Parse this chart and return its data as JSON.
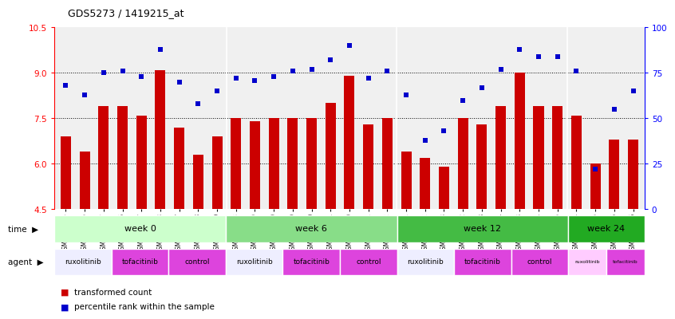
{
  "title": "GDS5273 / 1419215_at",
  "samples": [
    "GSM1105885",
    "GSM1105886",
    "GSM1105887",
    "GSM1105896",
    "GSM1105897",
    "GSM1105898",
    "GSM1105907",
    "GSM1105908",
    "GSM1105909",
    "GSM1105888",
    "GSM1105889",
    "GSM1105890",
    "GSM1105899",
    "GSM1105900",
    "GSM1105901",
    "GSM1105910",
    "GSM1105911",
    "GSM1105912",
    "GSM1105891",
    "GSM1105892",
    "GSM1105893",
    "GSM1105902",
    "GSM1105903",
    "GSM1105904",
    "GSM1105913",
    "GSM1105914",
    "GSM1105915",
    "GSM1105894",
    "GSM1105895",
    "GSM1105905",
    "GSM1105906"
  ],
  "bar_values": [
    6.9,
    6.4,
    7.9,
    7.9,
    7.6,
    9.1,
    7.2,
    6.3,
    6.9,
    7.5,
    7.4,
    7.5,
    7.5,
    7.5,
    8.0,
    8.9,
    7.3,
    7.5,
    6.4,
    6.2,
    5.9,
    7.5,
    7.3,
    7.9,
    9.0,
    7.9,
    7.9,
    7.6,
    6.0,
    6.8,
    6.8
  ],
  "percentile_values": [
    68,
    63,
    75,
    76,
    73,
    88,
    70,
    58,
    65,
    72,
    71,
    73,
    76,
    77,
    82,
    90,
    72,
    76,
    63,
    38,
    43,
    60,
    67,
    77,
    88,
    84,
    84,
    76,
    22,
    55,
    65
  ],
  "ylim_left": [
    4.5,
    10.5
  ],
  "ylim_right": [
    0,
    100
  ],
  "yticks_left": [
    4.5,
    6.0,
    7.5,
    9.0,
    10.5
  ],
  "yticks_right": [
    0,
    25,
    50,
    75,
    100
  ],
  "bar_color": "#cc0000",
  "dot_color": "#0000cc",
  "bar_bottom": 4.5,
  "dotted_yticks": [
    6.0,
    7.5,
    9.0
  ],
  "time_groups": [
    {
      "label": "week 0",
      "start": 0,
      "end": 9,
      "color": "#ccffcc"
    },
    {
      "label": "week 6",
      "start": 9,
      "end": 18,
      "color": "#88dd88"
    },
    {
      "label": "week 12",
      "start": 18,
      "end": 27,
      "color": "#44bb44"
    },
    {
      "label": "week 24",
      "start": 27,
      "end": 31,
      "color": "#22aa22"
    }
  ],
  "agent_groups": [
    {
      "label": "ruxolitinib",
      "start": 0,
      "end": 3,
      "color": "#eeeeff"
    },
    {
      "label": "tofacitinib",
      "start": 3,
      "end": 6,
      "color": "#dd44dd"
    },
    {
      "label": "control",
      "start": 6,
      "end": 9,
      "color": "#dd44dd"
    },
    {
      "label": "ruxolitinib",
      "start": 9,
      "end": 12,
      "color": "#eeeeff"
    },
    {
      "label": "tofacitinib",
      "start": 12,
      "end": 15,
      "color": "#dd44dd"
    },
    {
      "label": "control",
      "start": 15,
      "end": 18,
      "color": "#dd44dd"
    },
    {
      "label": "ruxolitinib",
      "start": 18,
      "end": 21,
      "color": "#eeeeff"
    },
    {
      "label": "tofacitinib",
      "start": 21,
      "end": 24,
      "color": "#dd44dd"
    },
    {
      "label": "control",
      "start": 24,
      "end": 27,
      "color": "#dd44dd"
    },
    {
      "label": "ruxolitinib",
      "start": 27,
      "end": 29,
      "color": "#ffccff"
    },
    {
      "label": "tofacitinib",
      "start": 29,
      "end": 31,
      "color": "#dd44dd"
    }
  ]
}
